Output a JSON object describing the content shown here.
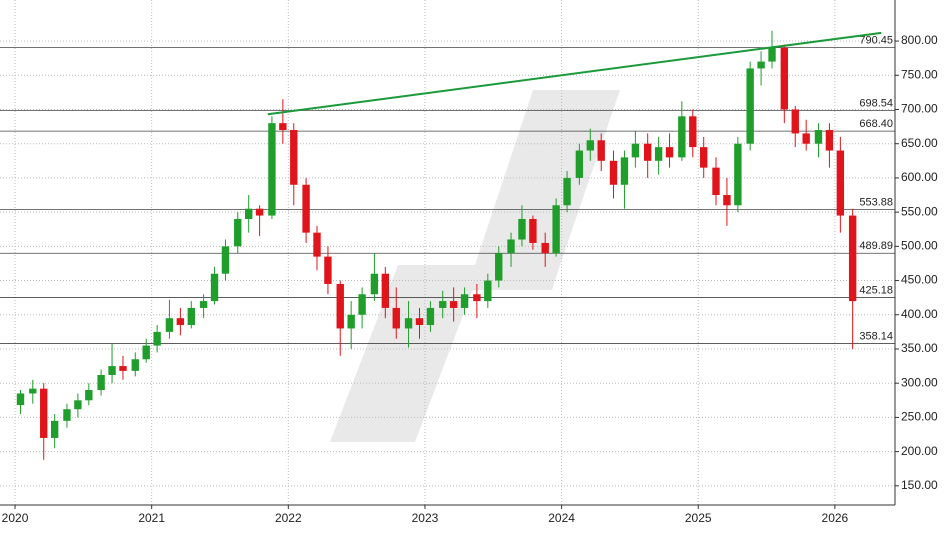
{
  "chart_data": {
    "type": "candlestick",
    "x": [
      2020.04,
      2020.13,
      2020.21,
      2020.29,
      2020.38,
      2020.46,
      2020.54,
      2020.63,
      2020.71,
      2020.79,
      2020.88,
      2020.96,
      2021.04,
      2021.13,
      2021.21,
      2021.29,
      2021.38,
      2021.46,
      2021.54,
      2021.63,
      2021.71,
      2021.79,
      2021.88,
      2021.96,
      2022.04,
      2022.13,
      2022.21,
      2022.29,
      2022.38,
      2022.46,
      2022.54,
      2022.63,
      2022.71,
      2022.79,
      2022.88,
      2022.96,
      2023.04,
      2023.13,
      2023.21,
      2023.29,
      2023.38,
      2023.46,
      2023.54,
      2023.63,
      2023.71,
      2023.79,
      2023.88,
      2023.96,
      2024.04,
      2024.13,
      2024.21,
      2024.29,
      2024.38,
      2024.46,
      2024.54,
      2024.63,
      2024.71,
      2024.79,
      2024.88,
      2024.96,
      2025.04,
      2025.13,
      2025.21,
      2025.29,
      2025.38,
      2025.46,
      2025.54,
      2025.63,
      2025.71,
      2025.79,
      2025.88,
      2025.96,
      2026.04,
      2026.13
    ],
    "open": [
      268,
      285,
      292,
      220,
      245,
      262,
      275,
      290,
      312,
      325,
      318,
      335,
      355,
      375,
      395,
      385,
      410,
      420,
      460,
      500,
      540,
      555,
      545,
      680,
      670,
      590,
      520,
      485,
      445,
      380,
      400,
      430,
      460,
      410,
      380,
      395,
      385,
      410,
      420,
      410,
      430,
      420,
      450,
      490,
      510,
      540,
      505,
      490,
      560,
      600,
      640,
      655,
      625,
      590,
      630,
      650,
      625,
      645,
      630,
      690,
      645,
      615,
      575,
      560,
      650,
      760,
      770,
      790,
      700,
      665,
      650,
      670,
      640,
      545
    ],
    "high": [
      290,
      305,
      300,
      255,
      270,
      285,
      300,
      320,
      358,
      340,
      345,
      365,
      385,
      422,
      410,
      420,
      430,
      470,
      510,
      550,
      575,
      560,
      690,
      715,
      680,
      600,
      530,
      500,
      450,
      420,
      440,
      490,
      470,
      440,
      420,
      410,
      420,
      435,
      440,
      440,
      445,
      460,
      500,
      520,
      560,
      545,
      520,
      570,
      610,
      650,
      672,
      665,
      640,
      640,
      668,
      665,
      660,
      665,
      712,
      700,
      660,
      630,
      600,
      660,
      770,
      785,
      815,
      795,
      705,
      685,
      680,
      680,
      660,
      555
    ],
    "low": [
      255,
      270,
      188,
      205,
      235,
      250,
      268,
      282,
      300,
      305,
      310,
      330,
      345,
      365,
      370,
      380,
      395,
      415,
      450,
      490,
      520,
      515,
      540,
      650,
      560,
      505,
      465,
      430,
      340,
      350,
      380,
      420,
      395,
      365,
      352,
      365,
      375,
      395,
      390,
      400,
      395,
      410,
      440,
      470,
      500,
      495,
      470,
      485,
      550,
      590,
      625,
      610,
      570,
      555,
      615,
      600,
      605,
      615,
      625,
      630,
      600,
      560,
      530,
      550,
      640,
      735,
      760,
      680,
      645,
      640,
      630,
      615,
      520,
      350
    ],
    "close": [
      285,
      292,
      220,
      245,
      262,
      275,
      290,
      312,
      325,
      318,
      335,
      355,
      375,
      395,
      385,
      410,
      420,
      460,
      500,
      540,
      555,
      545,
      680,
      670,
      590,
      520,
      485,
      445,
      380,
      400,
      430,
      460,
      410,
      380,
      395,
      385,
      410,
      420,
      410,
      430,
      420,
      450,
      490,
      510,
      540,
      505,
      490,
      560,
      600,
      640,
      655,
      625,
      590,
      630,
      650,
      625,
      645,
      630,
      690,
      645,
      615,
      575,
      560,
      650,
      760,
      770,
      790,
      700,
      665,
      650,
      670,
      640,
      545,
      420
    ],
    "up_color": "#1f9e2c",
    "down_color": "#e0141b",
    "xlim": [
      2019.89,
      2026.44
    ],
    "xticks": [
      2020,
      2021,
      2022,
      2023,
      2024,
      2025,
      2026
    ],
    "ylim": [
      122,
      860
    ],
    "yticks": [
      {
        "value": 150,
        "label": "150.00"
      },
      {
        "value": 200,
        "label": "200.00"
      },
      {
        "value": 250,
        "label": "250.00"
      },
      {
        "value": 300,
        "label": "300.00"
      },
      {
        "value": 350,
        "label": "350.00"
      },
      {
        "value": 400,
        "label": "400.00"
      },
      {
        "value": 450,
        "label": "450.00"
      },
      {
        "value": 500,
        "label": "500.00"
      },
      {
        "value": 550,
        "label": "550.00"
      },
      {
        "value": 600,
        "label": "600.00"
      },
      {
        "value": 650,
        "label": "650.00"
      },
      {
        "value": 700,
        "label": "700.00"
      },
      {
        "value": 750,
        "label": "750.00"
      },
      {
        "value": 800,
        "label": "800.00"
      }
    ],
    "levels": [
      {
        "value": 790.45,
        "label": "790.45"
      },
      {
        "value": 698.54,
        "label": "698.54"
      },
      {
        "value": 668.4,
        "label": "668.40"
      },
      {
        "value": 553.88,
        "label": "553.88"
      },
      {
        "value": 489.89,
        "label": "489.89"
      },
      {
        "value": 425.18,
        "label": "425.18"
      },
      {
        "value": 358.14,
        "label": "358.14"
      }
    ],
    "trendline": {
      "x": [
        2021.85,
        2026.34
      ],
      "values": [
        693,
        812
      ],
      "color": "#1a9a3a"
    },
    "grid": true
  }
}
